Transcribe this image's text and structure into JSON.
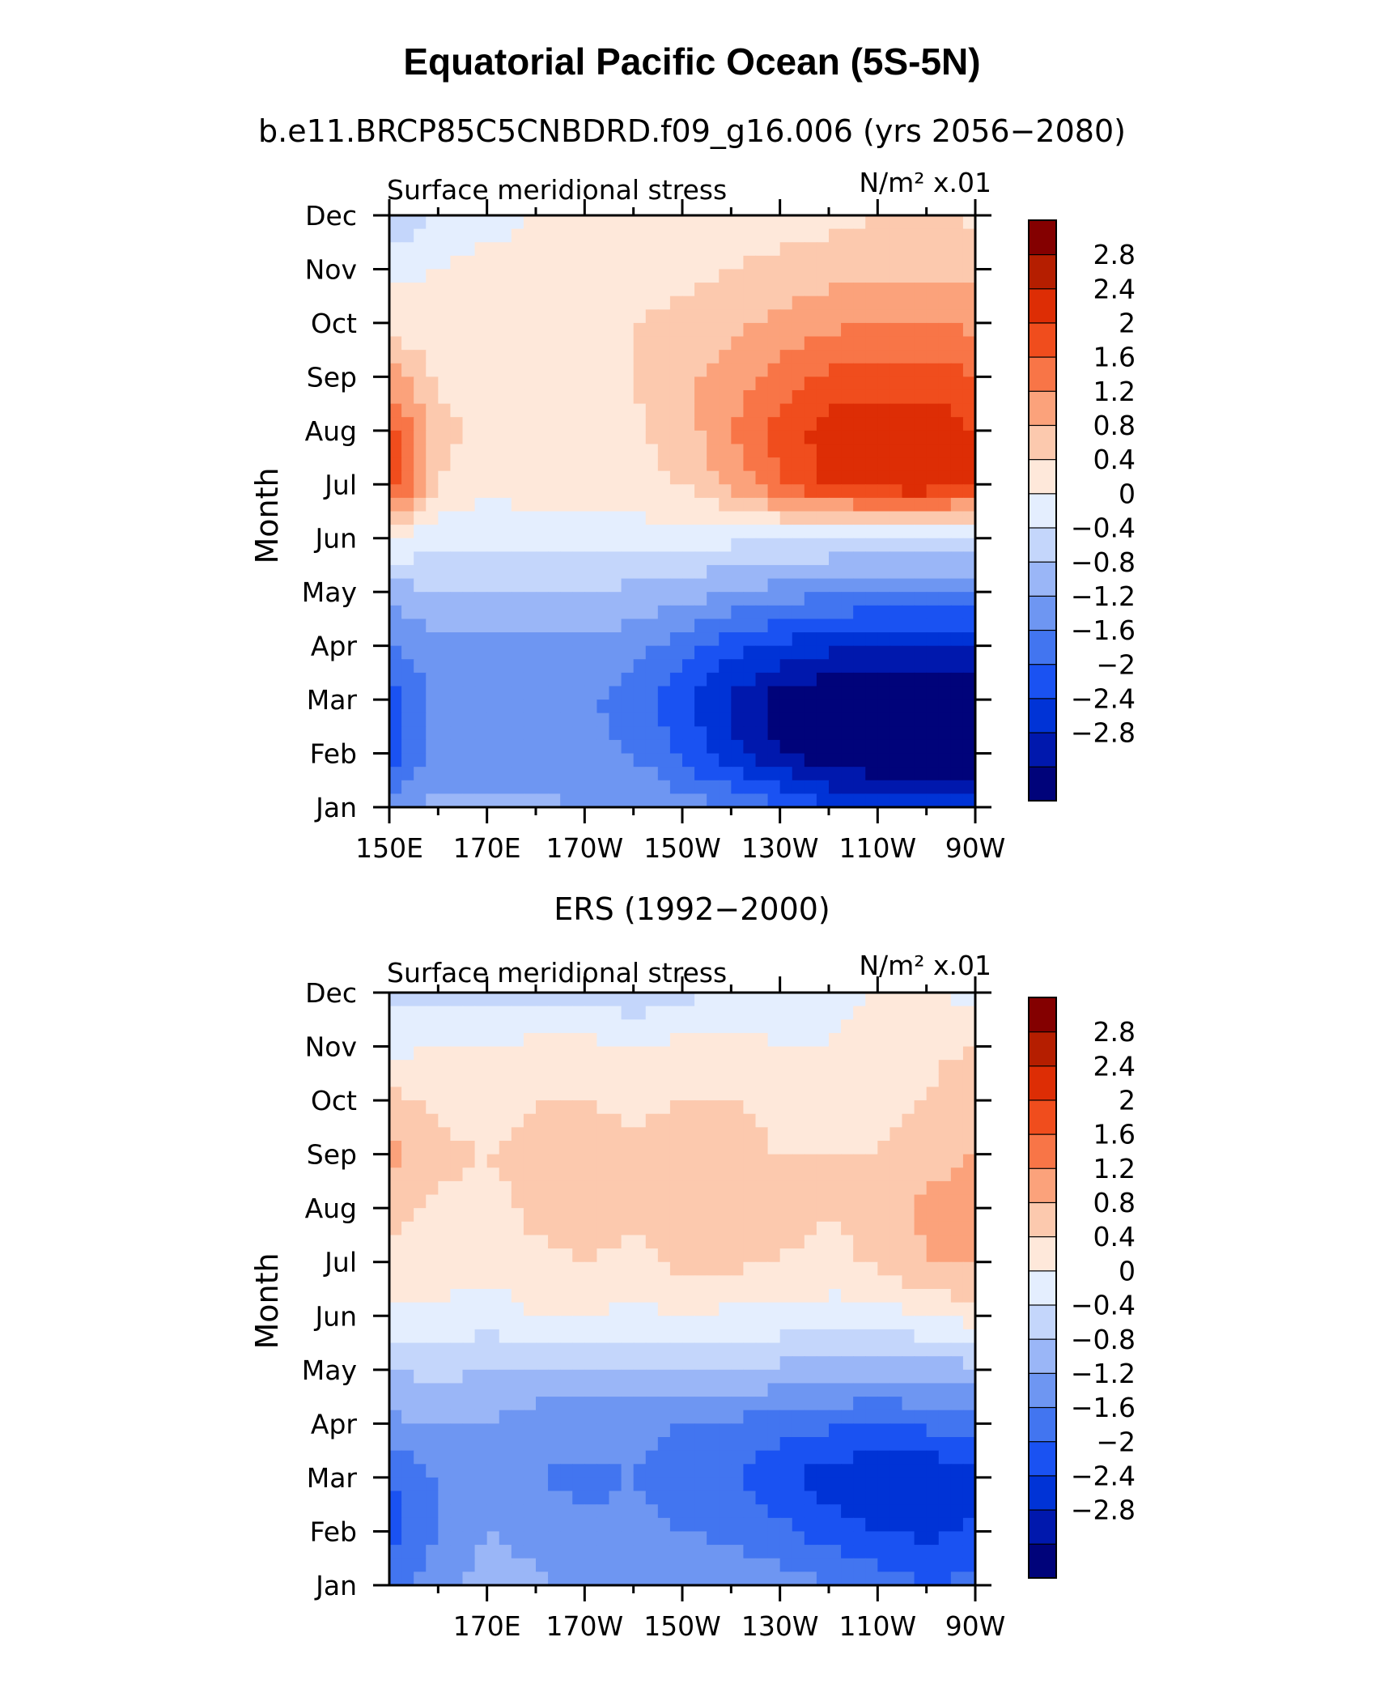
{
  "title": "Equatorial Pacific Ocean (5S-5N)",
  "colors": {
    "levels": [
      -2.8,
      -2.4,
      -2,
      -1.6,
      -1.2,
      -0.8,
      -0.4,
      0,
      0.4,
      0.8,
      1.2,
      1.6,
      2,
      2.4,
      2.8
    ],
    "fills": [
      "#00037a",
      "#0018ad",
      "#0033d6",
      "#1a52f2",
      "#4275f0",
      "#6e96f2",
      "#9ab6f7",
      "#c4d6fb",
      "#e4eefe",
      "#fee8da",
      "#fcc9ae",
      "#fba27b",
      "#f87547",
      "#f04d1d",
      "#dd2d05",
      "#b51e00",
      "#840000"
    ]
  },
  "chart_data": [
    {
      "type": "heatmap",
      "subtitle": "b.e11.BRCP85C5CNBDRD.f09_g16.006 (yrs 2056−2080)",
      "left_label": "Surface meridional stress",
      "units_label": "N/m² x.01",
      "ylabel": "Month",
      "yticklabels": [
        "Jan",
        "Feb",
        "Mar",
        "Apr",
        "May",
        "Jun",
        "Jul",
        "Aug",
        "Sep",
        "Oct",
        "Nov",
        "Dec"
      ],
      "xticklabels": [
        "150E",
        "170E",
        "170W",
        "150W",
        "130W",
        "110W",
        "90W"
      ],
      "xlim": [
        150,
        270
      ],
      "x_major": [
        150,
        170,
        190,
        210,
        230,
        250,
        270
      ],
      "ylim": [
        1,
        12
      ],
      "colorbar_ticks": [
        "2.8",
        "2.4",
        "2",
        "1.6",
        "1.2",
        "0.8",
        "0.4",
        "0",
        "−0.4",
        "−0.8",
        "−1.2",
        "−1.6",
        "−2",
        "−2.4",
        "−2.8"
      ],
      "x": [
        150,
        160,
        170,
        180,
        190,
        200,
        210,
        220,
        230,
        240,
        250,
        260,
        270
      ],
      "y": [
        1,
        2,
        3,
        4,
        5,
        6,
        7,
        8,
        9,
        10,
        11,
        12
      ],
      "z": [
        [
          -1.0,
          -0.7,
          -0.7,
          -0.7,
          -0.8,
          -0.8,
          -1.0,
          -1.2,
          -1.6,
          -1.9,
          -2.1,
          -2.2,
          -2.2
        ],
        [
          -1.9,
          -1.1,
          -1.1,
          -1.1,
          -1.1,
          -1.2,
          -1.7,
          -2.3,
          -2.8,
          -3.2,
          -3.3,
          -3.3,
          -3.2
        ],
        [
          -1.8,
          -1.1,
          -1.1,
          -1.1,
          -1.1,
          -1.4,
          -1.9,
          -2.5,
          -3.0,
          -3.2,
          -3.3,
          -3.2,
          -3.1
        ],
        [
          -1.3,
          -0.9,
          -0.9,
          -0.9,
          -0.9,
          -1.0,
          -1.4,
          -1.8,
          -2.1,
          -2.3,
          -2.4,
          -2.4,
          -2.4
        ],
        [
          -0.6,
          -0.4,
          -0.4,
          -0.4,
          -0.4,
          -0.5,
          -0.6,
          -0.8,
          -1.0,
          -1.1,
          -1.2,
          -1.2,
          -1.2
        ],
        [
          0.5,
          0.1,
          0.1,
          0.2,
          0.2,
          0.2,
          0.2,
          0.1,
          0.1,
          0.0,
          -0.1,
          -0.1,
          -0.1
        ],
        [
          2.4,
          0.8,
          0.5,
          0.6,
          0.7,
          0.7,
          0.8,
          1.3,
          2.0,
          2.5,
          2.7,
          2.8,
          2.4
        ],
        [
          2.2,
          1.0,
          0.6,
          0.6,
          0.6,
          0.7,
          1.0,
          1.6,
          2.2,
          2.6,
          2.6,
          2.7,
          2.4
        ],
        [
          1.4,
          0.7,
          0.6,
          0.6,
          0.6,
          0.8,
          1.1,
          1.4,
          1.8,
          2.1,
          2.2,
          2.2,
          2.0
        ],
        [
          0.6,
          0.5,
          0.5,
          0.5,
          0.6,
          0.8,
          0.9,
          1.1,
          1.3,
          1.5,
          1.6,
          1.6,
          1.5
        ],
        [
          0.3,
          0.4,
          0.5,
          0.5,
          0.6,
          0.6,
          0.7,
          0.8,
          0.9,
          1.0,
          1.1,
          1.1,
          1.0
        ],
        [
          -0.5,
          0.2,
          0.3,
          0.4,
          0.4,
          0.4,
          0.4,
          0.5,
          0.6,
          0.7,
          0.8,
          0.9,
          0.7
        ]
      ]
    },
    {
      "type": "heatmap",
      "subtitle": "ERS (1992−2000)",
      "left_label": "Surface meridional stress",
      "units_label": "N/m² x.01",
      "ylabel": "Month",
      "yticklabels": [
        "Jan",
        "Feb",
        "Mar",
        "Apr",
        "May",
        "Jun",
        "Jul",
        "Aug",
        "Sep",
        "Oct",
        "Nov",
        "Dec"
      ],
      "xticklabels": [
        "170E",
        "170W",
        "150W",
        "130W",
        "110W",
        "90W"
      ],
      "xlim": [
        150,
        270
      ],
      "x_major": [
        170,
        190,
        210,
        230,
        250,
        270
      ],
      "ylim": [
        1,
        12
      ],
      "colorbar_ticks": [
        "2.8",
        "2.4",
        "2",
        "1.6",
        "1.2",
        "0.8",
        "0.4",
        "0",
        "−0.4",
        "−0.8",
        "−1.2",
        "−1.6",
        "−2",
        "−2.4",
        "−2.8"
      ],
      "x": [
        150,
        160,
        170,
        180,
        190,
        200,
        210,
        220,
        230,
        240,
        250,
        260,
        270
      ],
      "y": [
        1,
        2,
        3,
        4,
        5,
        6,
        7,
        8,
        9,
        10,
        11,
        12
      ],
      "z": [
        [
          -1.4,
          -1.0,
          -0.6,
          -0.7,
          -0.9,
          -0.8,
          -0.9,
          -0.9,
          -1.0,
          -1.2,
          -1.4,
          -1.6,
          -1.5
        ],
        [
          -1.8,
          -1.2,
          -0.8,
          -1.0,
          -1.1,
          -1.1,
          -1.2,
          -1.3,
          -1.5,
          -1.8,
          -2.0,
          -2.1,
          -1.9
        ],
        [
          -1.6,
          -1.2,
          -1.0,
          -1.2,
          -1.3,
          -1.2,
          -1.4,
          -1.6,
          -1.9,
          -2.2,
          -2.4,
          -2.4,
          -2.1
        ],
        [
          -0.9,
          -0.8,
          -0.8,
          -1.0,
          -1.0,
          -1.1,
          -1.2,
          -1.3,
          -1.4,
          -1.5,
          -1.6,
          -1.5,
          -1.4
        ],
        [
          -0.4,
          -0.3,
          -0.4,
          -0.5,
          -0.5,
          -0.5,
          -0.5,
          -0.4,
          -0.5,
          -0.6,
          -0.6,
          -0.6,
          -0.5
        ],
        [
          0.3,
          0.3,
          0.2,
          0.4,
          0.4,
          0.3,
          0.4,
          0.3,
          0.3,
          0.2,
          0.2,
          0.4,
          0.6
        ],
        [
          0.7,
          0.6,
          0.5,
          0.7,
          0.8,
          0.7,
          0.9,
          0.9,
          0.8,
          0.7,
          0.9,
          1.2,
          1.3
        ],
        [
          0.9,
          0.7,
          0.7,
          0.9,
          1.0,
          0.9,
          1.0,
          1.0,
          0.9,
          0.8,
          0.9,
          1.3,
          1.4
        ],
        [
          1.3,
          0.9,
          0.8,
          0.9,
          1.0,
          0.9,
          1.0,
          0.9,
          0.8,
          0.8,
          0.8,
          1.0,
          1.2
        ],
        [
          0.9,
          0.7,
          0.6,
          0.8,
          0.8,
          0.7,
          0.8,
          0.8,
          0.7,
          0.6,
          0.7,
          0.8,
          1.1
        ],
        [
          0.3,
          0.4,
          0.4,
          0.5,
          0.5,
          0.4,
          0.5,
          0.5,
          0.4,
          0.4,
          0.5,
          0.7,
          0.8
        ],
        [
          -0.2,
          -0.1,
          -0.2,
          -0.1,
          -0.2,
          -0.3,
          -0.1,
          0.1,
          0.2,
          0.3,
          0.4,
          0.4,
          0.3
        ]
      ]
    }
  ]
}
